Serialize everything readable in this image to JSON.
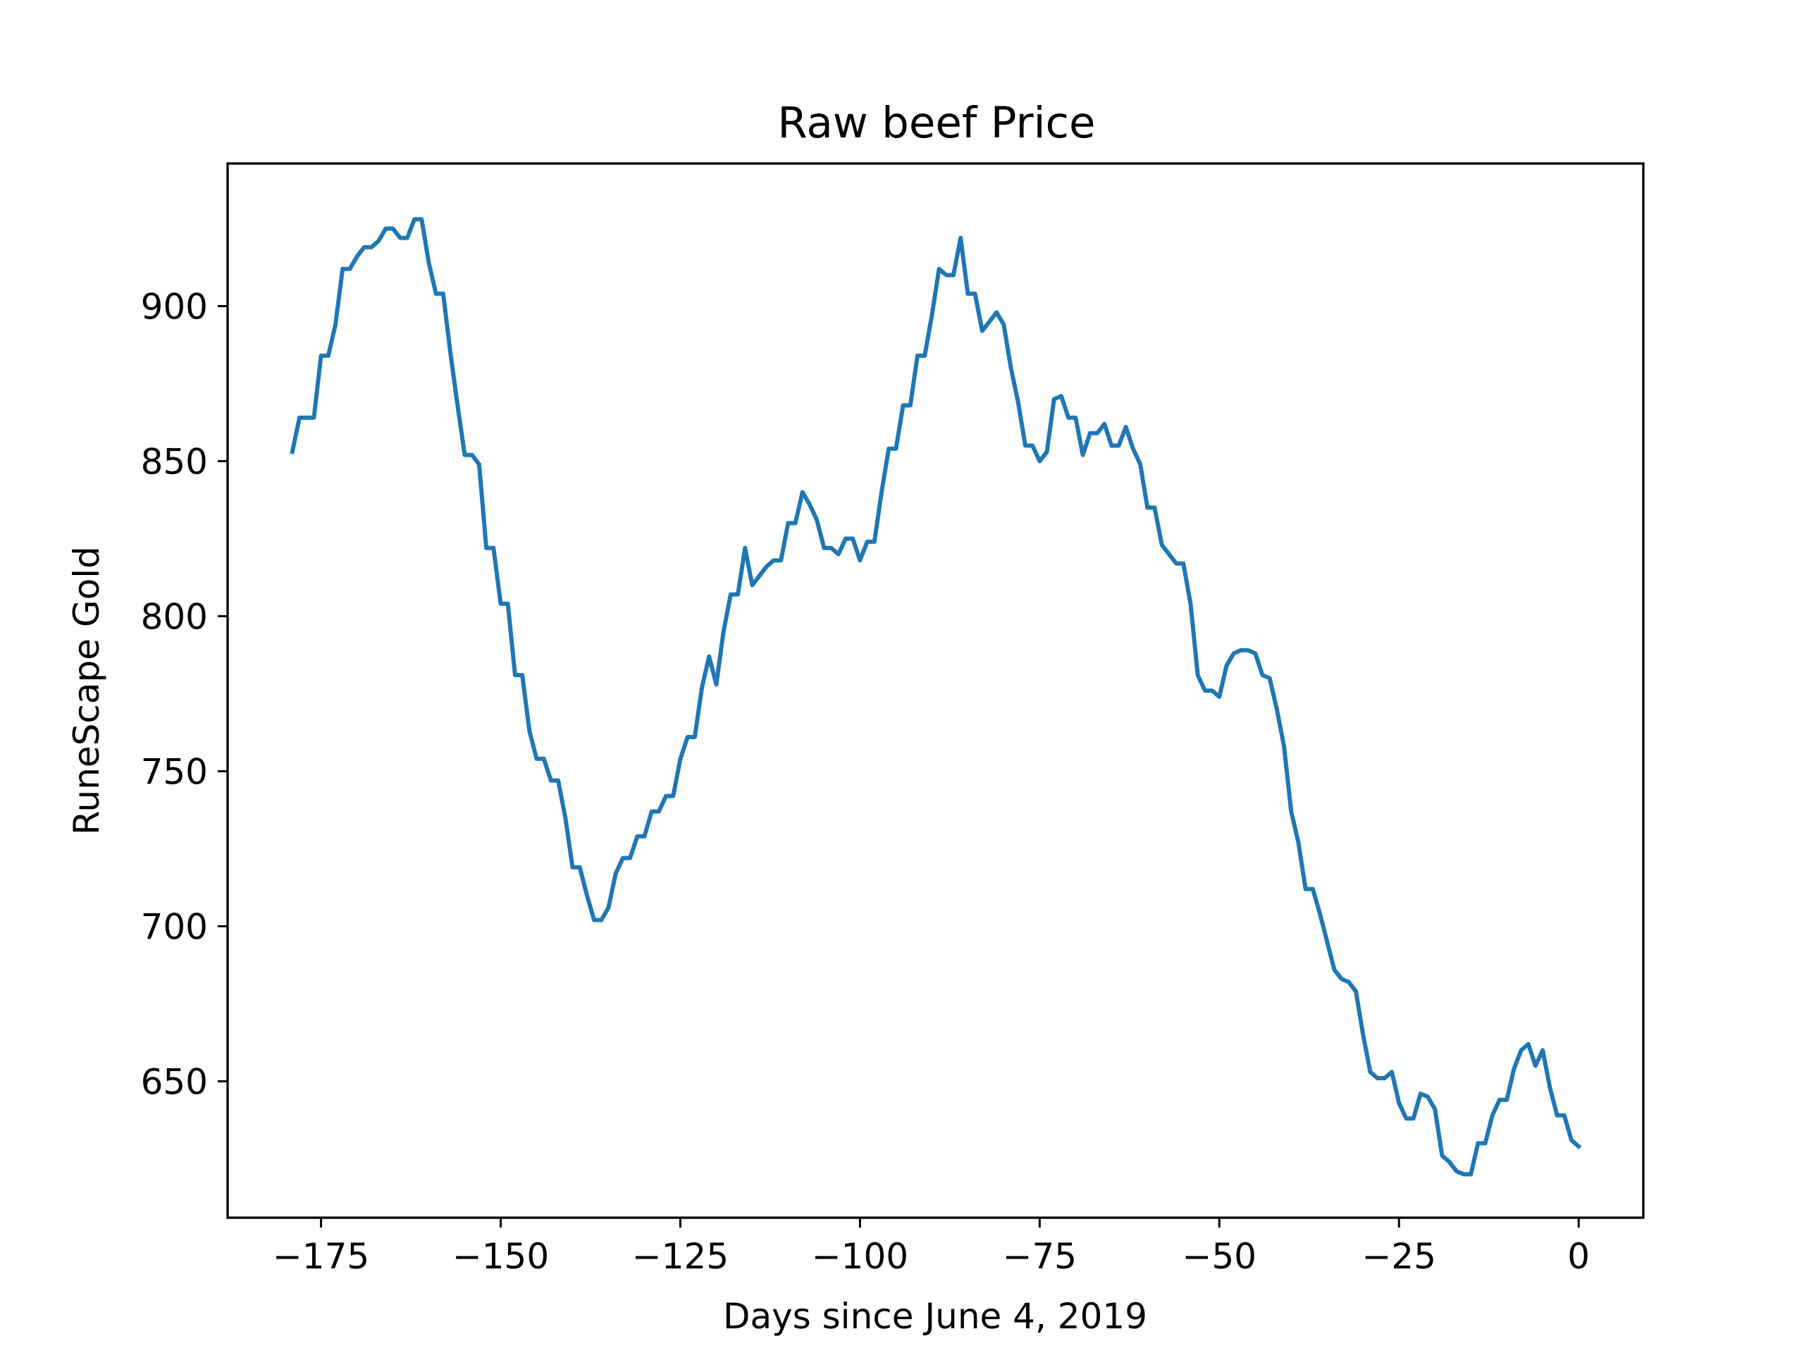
{
  "chart_data": {
    "type": "line",
    "title": "Raw beef Price",
    "xlabel": "Days since June 4, 2019",
    "ylabel": "RuneScape Gold",
    "xlim": [
      -188,
      9
    ],
    "ylim": [
      606,
      946
    ],
    "xticks": [
      -175,
      -150,
      -125,
      -100,
      -75,
      -50,
      -25,
      0
    ],
    "xtick_labels": [
      "−175",
      "−150",
      "−125",
      "−100",
      "−75",
      "−50",
      "−25",
      "0"
    ],
    "yticks": [
      650,
      700,
      750,
      800,
      850,
      900
    ],
    "ytick_labels": [
      "650",
      "700",
      "750",
      "800",
      "850",
      "900"
    ],
    "grid": false,
    "colors": {
      "series": "#1f77b4"
    },
    "series": [
      {
        "x": [
          -179,
          -178,
          -177,
          -176,
          -175,
          -174,
          -173,
          -172,
          -171,
          -170,
          -169,
          -168,
          -167,
          -166,
          -165,
          -164,
          -163,
          -162,
          -161,
          -160,
          -159,
          -158,
          -157,
          -156,
          -155,
          -154,
          -153,
          -152,
          -151,
          -150,
          -149,
          -148,
          -147,
          -146,
          -145,
          -144,
          -143,
          -142,
          -141,
          -140,
          -139,
          -138,
          -137,
          -136,
          -135,
          -134,
          -133,
          -132,
          -131,
          -130,
          -129,
          -128,
          -127,
          -126,
          -125,
          -124,
          -123,
          -122,
          -121,
          -120,
          -119,
          -118,
          -117,
          -116,
          -115,
          -114,
          -113,
          -112,
          -111,
          -110,
          -109,
          -108,
          -107,
          -106,
          -105,
          -104,
          -103,
          -102,
          -101,
          -100,
          -99,
          -98,
          -97,
          -96,
          -95,
          -94,
          -93,
          -92,
          -91,
          -90,
          -89,
          -88,
          -87,
          -86,
          -85,
          -84,
          -83,
          -82,
          -81,
          -80,
          -79,
          -78,
          -77,
          -76,
          -75,
          -74,
          -73,
          -72,
          -71,
          -70,
          -69,
          -68,
          -67,
          -66,
          -65,
          -64,
          -63,
          -62,
          -61,
          -60,
          -59,
          -58,
          -57,
          -56,
          -55,
          -54,
          -53,
          -52,
          -51,
          -50,
          -49,
          -48,
          -47,
          -46,
          -45,
          -44,
          -43,
          -42,
          -41,
          -40,
          -39,
          -38,
          -37,
          -36,
          -35,
          -34,
          -33,
          -32,
          -31,
          -30,
          -29,
          -28,
          -27,
          -26,
          -25,
          -24,
          -23,
          -22,
          -21,
          -20,
          -19,
          -18,
          -17,
          -16,
          -15,
          -14,
          -13,
          -12,
          -11,
          -10,
          -9,
          -8,
          -7,
          -6,
          -5,
          -4,
          -3,
          -2,
          -1,
          0
        ],
        "y": [
          853,
          864,
          864,
          864,
          884,
          884,
          894,
          912,
          912,
          916,
          919,
          919,
          921,
          925,
          925,
          922,
          922,
          928,
          928,
          914,
          904,
          904,
          885,
          868,
          852,
          852,
          849,
          822,
          822,
          804,
          804,
          781,
          781,
          763,
          754,
          754,
          747,
          747,
          735,
          719,
          719,
          710,
          702,
          702,
          706,
          717,
          722,
          722,
          729,
          729,
          737,
          737,
          742,
          742,
          754,
          761,
          761,
          777,
          787,
          778,
          795,
          807,
          807,
          822,
          810,
          813,
          816,
          818,
          818,
          830,
          830,
          840,
          836,
          831,
          822,
          822,
          820,
          825,
          825,
          818,
          824,
          824,
          840,
          854,
          854,
          868,
          868,
          884,
          884,
          897,
          912,
          910,
          910,
          922,
          904,
          904,
          892,
          895,
          898,
          894,
          880,
          869,
          855,
          855,
          850,
          853,
          870,
          871,
          864,
          864,
          852,
          859,
          859,
          862,
          855,
          855,
          861,
          854,
          849,
          835,
          835,
          823,
          820,
          817,
          817,
          804,
          781,
          776,
          776,
          774,
          784,
          788,
          789,
          789,
          788,
          781,
          780,
          770,
          758,
          737,
          727,
          712,
          712,
          704,
          695,
          686,
          683,
          682,
          679,
          665,
          653,
          651,
          651,
          653,
          643,
          638,
          638,
          646,
          645,
          641,
          626,
          624,
          621,
          620,
          620,
          630,
          630,
          639,
          644,
          644,
          654,
          660,
          662,
          655,
          660,
          648,
          639,
          639,
          631,
          629
        ]
      }
    ]
  }
}
